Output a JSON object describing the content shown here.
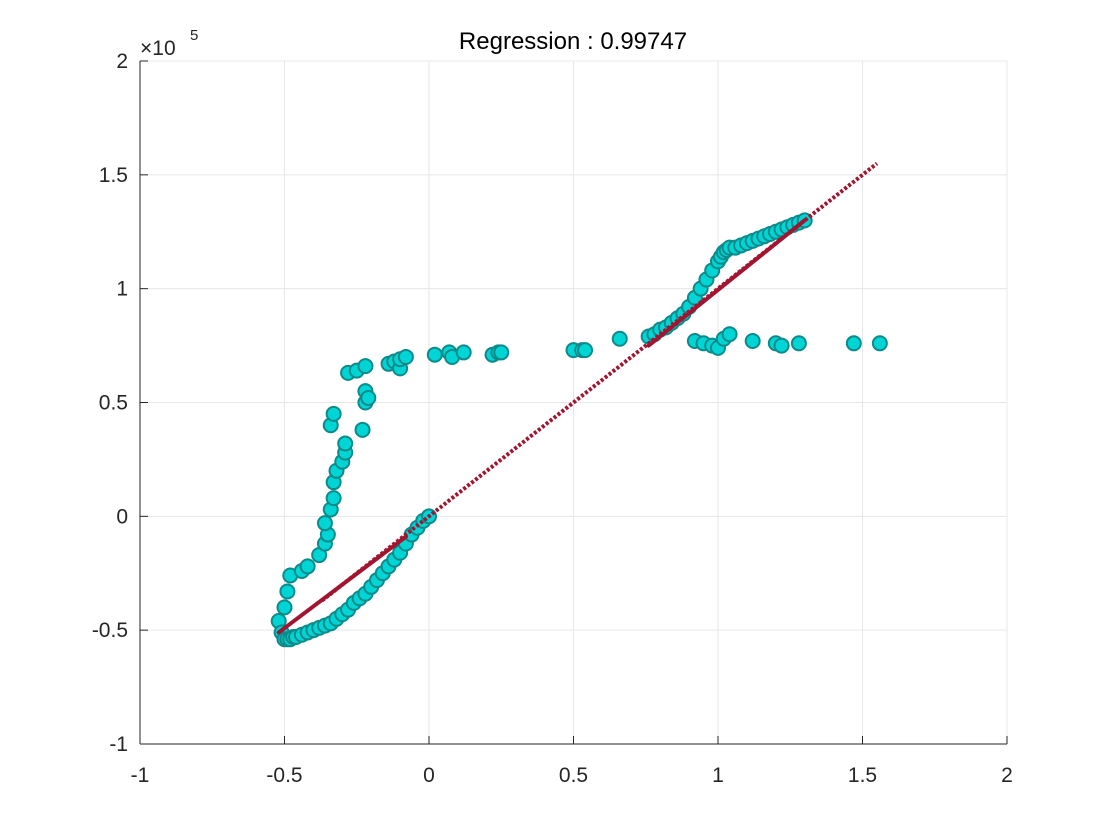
{
  "chart_data": {
    "type": "scatter",
    "title": "Regression :   0.99747",
    "y_exponent_base": "×10",
    "y_exponent_power": "5",
    "xlim": [
      -1,
      2
    ],
    "ylim": [
      -100000,
      200000
    ],
    "xticks": [
      -1,
      -0.5,
      0,
      0.5,
      1,
      1.5,
      2
    ],
    "xtick_labels": [
      "-1",
      "-0.5",
      "0",
      "0.5",
      "1",
      "1.5",
      "2"
    ],
    "yticks": [
      -100000,
      -50000,
      0,
      50000,
      100000,
      150000,
      200000
    ],
    "ytick_labels": [
      "-1",
      "-0.5",
      "0",
      "0.5",
      "1",
      "1.5",
      "2"
    ],
    "grid": true,
    "colors": {
      "marker_fill": "#00d5d5",
      "marker_edge": "#0d8a8a",
      "fit_line": "#a2142f",
      "grid": "#e6e6e6",
      "axis": "#262626"
    },
    "series": [
      {
        "style": "markers",
        "x": [
          -0.52,
          -0.51,
          -0.5,
          -0.49,
          -0.48,
          -0.47,
          -0.46,
          -0.44,
          -0.42,
          -0.4,
          -0.38,
          -0.36,
          -0.34,
          -0.32,
          -0.3,
          -0.28,
          -0.26,
          -0.24,
          -0.22,
          -0.2,
          -0.18,
          -0.16,
          -0.14,
          -0.12,
          -0.1,
          -0.08,
          -0.06,
          -0.04,
          -0.02,
          0.0,
          -0.5,
          -0.49,
          -0.48,
          -0.44,
          -0.42,
          -0.38,
          -0.36,
          -0.35,
          -0.36,
          -0.34,
          -0.33,
          -0.33,
          -0.32,
          -0.3,
          -0.29,
          -0.29,
          -0.34,
          -0.33,
          -0.28,
          -0.25,
          -0.22,
          -0.22,
          -0.22,
          -0.23,
          -0.21,
          -0.14,
          -0.12,
          -0.1,
          -0.1,
          -0.08,
          0.02,
          0.07,
          0.08,
          0.12,
          0.22,
          0.24,
          0.25,
          0.5,
          0.53,
          0.54,
          0.66,
          0.76,
          0.78,
          0.8,
          0.82,
          0.84,
          0.86,
          0.88,
          0.9,
          0.92,
          0.94,
          0.96,
          0.98,
          1.0,
          1.01,
          1.02,
          1.03,
          1.04,
          1.06,
          1.08,
          1.1,
          1.12,
          1.14,
          1.16,
          1.18,
          1.2,
          1.22,
          1.24,
          1.26,
          1.28,
          1.3,
          0.92,
          0.95,
          0.98,
          1.0,
          1.02,
          1.04,
          1.12,
          1.2,
          1.22,
          1.28,
          1.47,
          1.56
        ],
        "y": [
          -46000,
          -51000,
          -54000,
          -54000,
          -54000,
          -53000,
          -53000,
          -52000,
          -51000,
          -50000,
          -49000,
          -48000,
          -47000,
          -45000,
          -43000,
          -41000,
          -38000,
          -36000,
          -34000,
          -31000,
          -28000,
          -25000,
          -22000,
          -19000,
          -16000,
          -12000,
          -8000,
          -5000,
          -2000,
          0,
          -40000,
          -33000,
          -26000,
          -24000,
          -22000,
          -17000,
          -12000,
          -8000,
          -3000,
          3000,
          8000,
          15000,
          20000,
          24000,
          28000,
          32000,
          40000,
          45000,
          63000,
          64000,
          66000,
          50000,
          55000,
          38000,
          52000,
          67000,
          68000,
          65000,
          69000,
          70000,
          71000,
          72000,
          70000,
          72000,
          71000,
          72000,
          72000,
          73000,
          73000,
          73000,
          78000,
          79000,
          80000,
          82000,
          83000,
          85000,
          87000,
          89000,
          92000,
          96000,
          100000,
          104000,
          108000,
          112000,
          114000,
          116000,
          117000,
          118000,
          118000,
          119000,
          120000,
          121000,
          122000,
          123000,
          124000,
          125000,
          126000,
          127000,
          128000,
          129000,
          130000,
          77000,
          76000,
          75000,
          74000,
          78000,
          80000,
          77000,
          76000,
          75000,
          76000,
          76000,
          76000
        ]
      },
      {
        "style": "solid-line",
        "x": [
          -0.52,
          -0.08
        ],
        "y": [
          -51000,
          -9000
        ]
      },
      {
        "style": "dotted-line",
        "x": [
          -0.37,
          1.55
        ],
        "y": [
          -37000,
          155000
        ]
      },
      {
        "style": "solid-line",
        "x": [
          0.76,
          1.3
        ],
        "y": [
          75000,
          130000
        ]
      }
    ]
  }
}
